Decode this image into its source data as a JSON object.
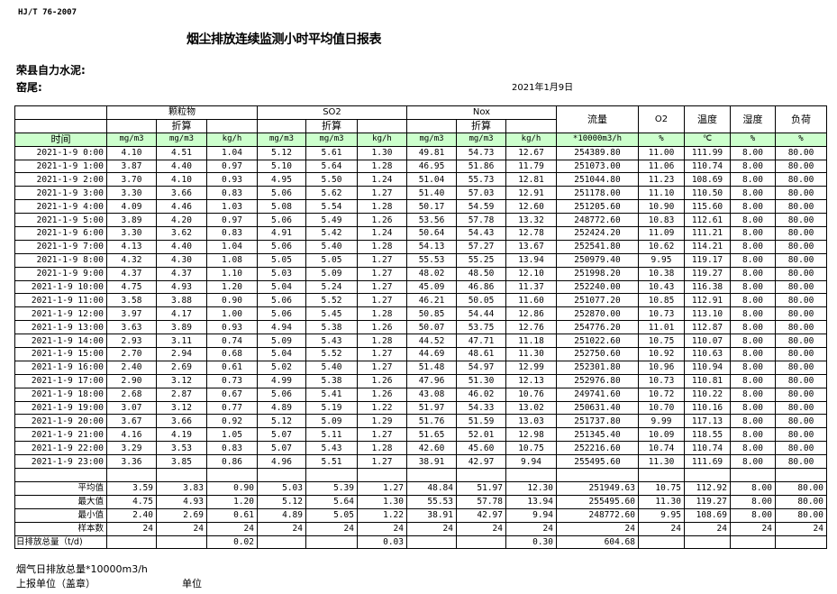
{
  "header": {
    "standard": "HJ/T  76-2007",
    "title": "烟尘排放连续监测小时平均值日报表",
    "company": "荣县自力水泥:",
    "kiln": "窑尾:",
    "date": "2021年1月9日"
  },
  "table": {
    "groups": {
      "particulate": "颗粒物",
      "so2": "SO2",
      "nox": "Nox",
      "flow": "流量",
      "o2": "O2",
      "temp": "温度",
      "humidity": "湿度",
      "load": "负荷"
    },
    "converted": "折算",
    "time_label": "时间",
    "units": [
      "mg/m3",
      "mg/m3",
      "kg/h",
      "mg/m3",
      "mg/m3",
      "kg/h",
      "mg/m3",
      "mg/m3",
      "kg/h",
      "*10000m3/h",
      "%",
      "℃",
      "%",
      "%"
    ],
    "rows": [
      [
        "2021-1-9 0:00",
        "4.10",
        "4.51",
        "1.04",
        "5.12",
        "5.61",
        "1.30",
        "49.81",
        "54.73",
        "12.67",
        "254389.80",
        "11.00",
        "111.99",
        "8.00",
        "80.00"
      ],
      [
        "2021-1-9 1:00",
        "3.87",
        "4.40",
        "0.97",
        "5.10",
        "5.64",
        "1.28",
        "46.95",
        "51.86",
        "11.79",
        "251073.00",
        "11.06",
        "110.74",
        "8.00",
        "80.00"
      ],
      [
        "2021-1-9 2:00",
        "3.70",
        "4.10",
        "0.93",
        "4.95",
        "5.50",
        "1.24",
        "51.04",
        "55.73",
        "12.81",
        "251044.80",
        "11.23",
        "108.69",
        "8.00",
        "80.00"
      ],
      [
        "2021-1-9 3:00",
        "3.30",
        "3.66",
        "0.83",
        "5.06",
        "5.62",
        "1.27",
        "51.40",
        "57.03",
        "12.91",
        "251178.00",
        "11.10",
        "110.50",
        "8.00",
        "80.00"
      ],
      [
        "2021-1-9 4:00",
        "4.09",
        "4.46",
        "1.03",
        "5.08",
        "5.54",
        "1.28",
        "50.17",
        "54.59",
        "12.60",
        "251205.60",
        "10.90",
        "115.60",
        "8.00",
        "80.00"
      ],
      [
        "2021-1-9 5:00",
        "3.89",
        "4.20",
        "0.97",
        "5.06",
        "5.49",
        "1.26",
        "53.56",
        "57.78",
        "13.32",
        "248772.60",
        "10.83",
        "112.61",
        "8.00",
        "80.00"
      ],
      [
        "2021-1-9 6:00",
        "3.30",
        "3.62",
        "0.83",
        "4.91",
        "5.42",
        "1.24",
        "50.64",
        "54.43",
        "12.78",
        "252424.20",
        "11.09",
        "111.21",
        "8.00",
        "80.00"
      ],
      [
        "2021-1-9 7:00",
        "4.13",
        "4.40",
        "1.04",
        "5.06",
        "5.40",
        "1.28",
        "54.13",
        "57.27",
        "13.67",
        "252541.80",
        "10.62",
        "114.21",
        "8.00",
        "80.00"
      ],
      [
        "2021-1-9 8:00",
        "4.32",
        "4.30",
        "1.08",
        "5.05",
        "5.05",
        "1.27",
        "55.53",
        "55.25",
        "13.94",
        "250979.40",
        "9.95",
        "119.17",
        "8.00",
        "80.00"
      ],
      [
        "2021-1-9 9:00",
        "4.37",
        "4.37",
        "1.10",
        "5.03",
        "5.09",
        "1.27",
        "48.02",
        "48.50",
        "12.10",
        "251998.20",
        "10.38",
        "119.27",
        "8.00",
        "80.00"
      ],
      [
        "2021-1-9 10:00",
        "4.75",
        "4.93",
        "1.20",
        "5.04",
        "5.24",
        "1.27",
        "45.09",
        "46.86",
        "11.37",
        "252240.00",
        "10.43",
        "116.38",
        "8.00",
        "80.00"
      ],
      [
        "2021-1-9 11:00",
        "3.58",
        "3.88",
        "0.90",
        "5.06",
        "5.52",
        "1.27",
        "46.21",
        "50.05",
        "11.60",
        "251077.20",
        "10.85",
        "112.91",
        "8.00",
        "80.00"
      ],
      [
        "2021-1-9 12:00",
        "3.97",
        "4.17",
        "1.00",
        "5.06",
        "5.45",
        "1.28",
        "50.85",
        "54.44",
        "12.86",
        "252870.00",
        "10.73",
        "113.10",
        "8.00",
        "80.00"
      ],
      [
        "2021-1-9 13:00",
        "3.63",
        "3.89",
        "0.93",
        "4.94",
        "5.38",
        "1.26",
        "50.07",
        "53.75",
        "12.76",
        "254776.20",
        "11.01",
        "112.87",
        "8.00",
        "80.00"
      ],
      [
        "2021-1-9 14:00",
        "2.93",
        "3.11",
        "0.74",
        "5.09",
        "5.43",
        "1.28",
        "44.52",
        "47.71",
        "11.18",
        "251022.60",
        "10.75",
        "110.07",
        "8.00",
        "80.00"
      ],
      [
        "2021-1-9 15:00",
        "2.70",
        "2.94",
        "0.68",
        "5.04",
        "5.52",
        "1.27",
        "44.69",
        "48.61",
        "11.30",
        "252750.60",
        "10.92",
        "110.63",
        "8.00",
        "80.00"
      ],
      [
        "2021-1-9 16:00",
        "2.40",
        "2.69",
        "0.61",
        "5.02",
        "5.40",
        "1.27",
        "51.48",
        "54.97",
        "12.99",
        "252301.80",
        "10.96",
        "110.94",
        "8.00",
        "80.00"
      ],
      [
        "2021-1-9 17:00",
        "2.90",
        "3.12",
        "0.73",
        "4.99",
        "5.38",
        "1.26",
        "47.96",
        "51.30",
        "12.13",
        "252976.80",
        "10.73",
        "110.81",
        "8.00",
        "80.00"
      ],
      [
        "2021-1-9 18:00",
        "2.68",
        "2.87",
        "0.67",
        "5.06",
        "5.41",
        "1.26",
        "43.08",
        "46.02",
        "10.76",
        "249741.60",
        "10.72",
        "110.22",
        "8.00",
        "80.00"
      ],
      [
        "2021-1-9 19:00",
        "3.07",
        "3.12",
        "0.77",
        "4.89",
        "5.19",
        "1.22",
        "51.97",
        "54.33",
        "13.02",
        "250631.40",
        "10.70",
        "110.16",
        "8.00",
        "80.00"
      ],
      [
        "2021-1-9 20:00",
        "3.67",
        "3.66",
        "0.92",
        "5.12",
        "5.09",
        "1.29",
        "51.76",
        "51.59",
        "13.03",
        "251737.80",
        "9.99",
        "117.13",
        "8.00",
        "80.00"
      ],
      [
        "2021-1-9 21:00",
        "4.16",
        "4.19",
        "1.05",
        "5.07",
        "5.11",
        "1.27",
        "51.65",
        "52.01",
        "12.98",
        "251345.40",
        "10.09",
        "118.55",
        "8.00",
        "80.00"
      ],
      [
        "2021-1-9 22:00",
        "3.29",
        "3.53",
        "0.83",
        "5.07",
        "5.43",
        "1.28",
        "42.60",
        "45.60",
        "10.75",
        "252216.60",
        "10.74",
        "110.74",
        "8.00",
        "80.00"
      ],
      [
        "2021-1-9 23:00",
        "3.36",
        "3.85",
        "0.86",
        "4.96",
        "5.51",
        "1.27",
        "38.91",
        "42.97",
        "9.94",
        "255495.60",
        "11.30",
        "111.69",
        "8.00",
        "80.00"
      ]
    ],
    "stats": [
      [
        "平均值",
        "3.59",
        "3.83",
        "0.90",
        "5.03",
        "5.39",
        "1.27",
        "48.84",
        "51.97",
        "12.30",
        "251949.63",
        "10.75",
        "112.92",
        "8.00",
        "80.00"
      ],
      [
        "最大值",
        "4.75",
        "4.93",
        "1.20",
        "5.12",
        "5.64",
        "1.30",
        "55.53",
        "57.78",
        "13.94",
        "255495.60",
        "11.30",
        "119.27",
        "8.00",
        "80.00"
      ],
      [
        "最小值",
        "2.40",
        "2.69",
        "0.61",
        "4.89",
        "5.05",
        "1.22",
        "38.91",
        "42.97",
        "9.94",
        "248772.60",
        "9.95",
        "108.69",
        "8.00",
        "80.00"
      ],
      [
        "样本数",
        "24",
        "24",
        "24",
        "24",
        "24",
        "24",
        "24",
        "24",
        "24",
        "24",
        "24",
        "24",
        "24",
        "24"
      ],
      [
        "日排放总量（t/d)",
        "",
        "",
        "0.02",
        "",
        "",
        "0.03",
        "",
        "",
        "0.30",
        "604.68",
        "",
        "",
        "",
        ""
      ]
    ]
  },
  "footer": {
    "flue_gas_total": "烟气日排放总量*10000m3/h",
    "reporting_unit": "上报单位（盖章）",
    "unit": "单位"
  },
  "colors": {
    "header_green": "#ccffcc"
  }
}
